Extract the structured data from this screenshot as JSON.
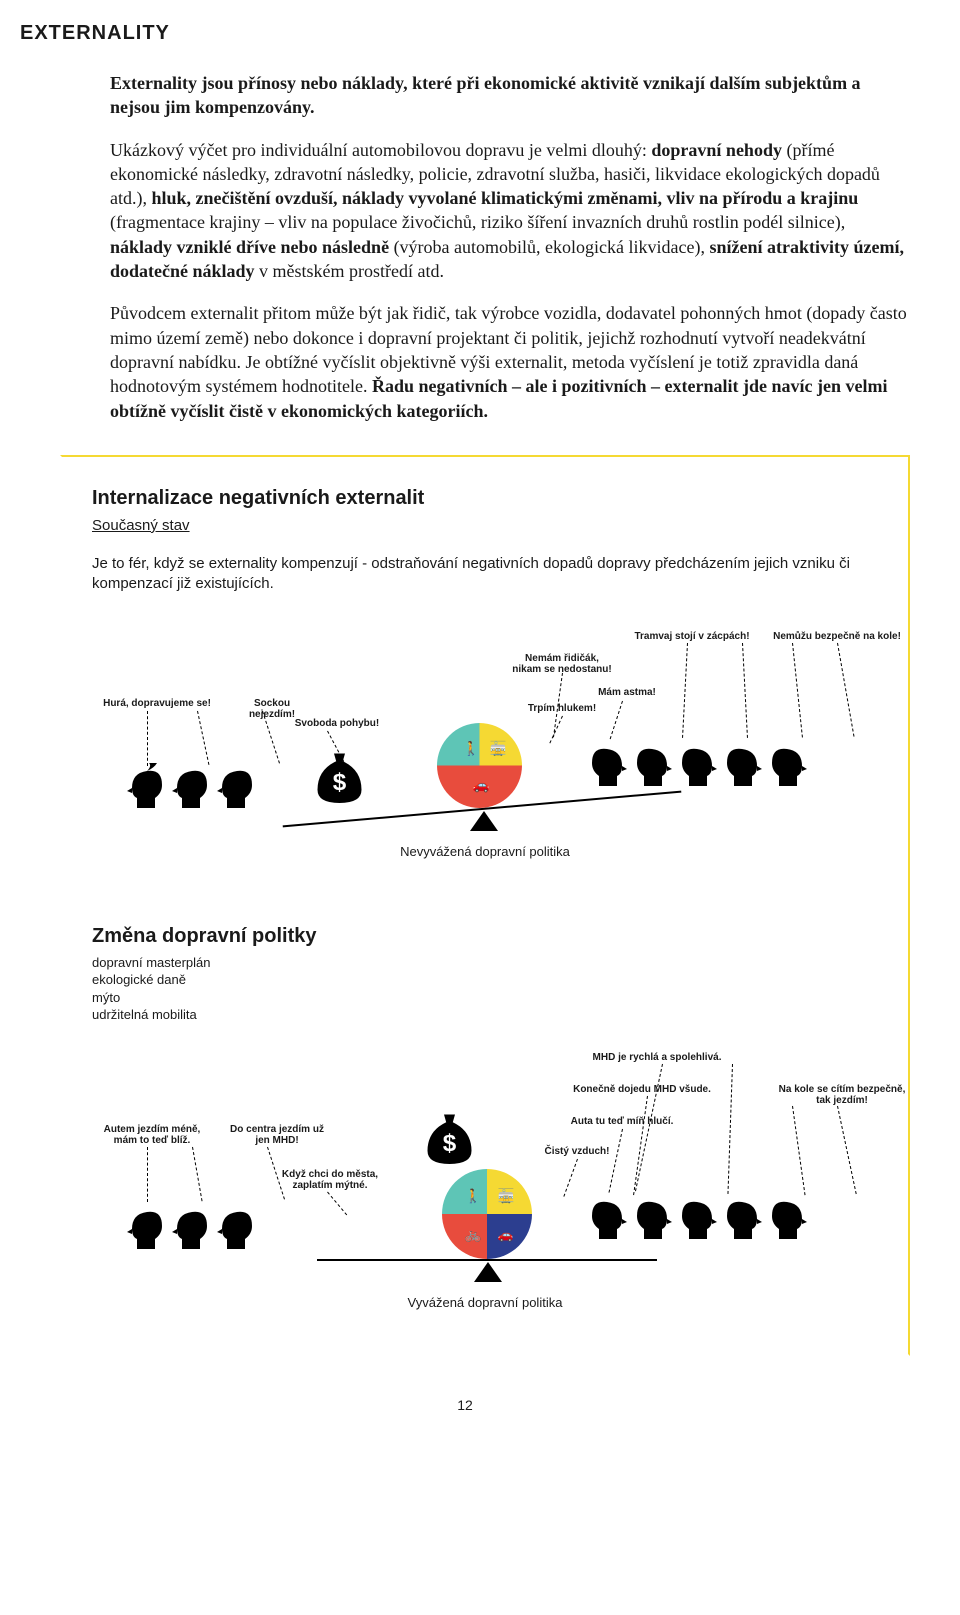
{
  "page_title": "EXTERNALITY",
  "definition_text": "Externality jsou přínosy nebo náklady, které při ekonomické aktivitě vznikají dalším subjektům a nejsou jim kompenzovány.",
  "para2_pre": "Ukázkový výčet pro individuální automobilovou dopravu je velmi dlouhý: ",
  "para2_bold1": "dopravní nehody",
  "para2_mid1": " (přímé ekonomické následky, zdravotní následky, policie, zdravotní služba, hasiči, likvidace ekologických dopadů atd.), ",
  "para2_bold2": "hluk, znečištění ovzduší, náklady vyvolané klimatickými změnami, vliv na přírodu a krajinu",
  "para2_mid2": " (fragmentace krajiny – vliv na populace živočichů, riziko šíření invazních druhů rostlin podél silnice), ",
  "para2_bold3": "náklady vzniklé dříve nebo následně",
  "para2_mid3": " (výroba automobilů, ekologická likvidace), ",
  "para2_bold4": "snížení atraktivity území, dodatečné náklady",
  "para2_end": " v městském prostředí atd.",
  "para3_pre": "Původcem externalit přitom může být jak řidič, tak výrobce vozidla, dodavatel pohonných hmot (dopady často mimo území země) nebo dokonce i dopravní projektant či politik, jejichž rozhodnutí vytvoří neadekvátní dopravní nabídku. Je obtížné vyčíslit objektivně výši externalit, metoda vyčíslení je totiž zpravidla daná hodnotovým systémem hodnotitele. ",
  "para3_bold": "Řadu negativních – ale i pozitivních – externalit jde navíc jen velmi obtížně vyčíslit čistě v ekonomických kategoriích.",
  "box": {
    "title": "Internalizace negativních externalit",
    "subtitle": "Současný stav",
    "lead": "Je to fér, když se externality kompenzují - odstraňování negativních dopadů dopravy předcházením jejich vzniku či kompenzací již existujících.",
    "scene1": {
      "left_labels": [
        "Hurá, dopravujeme se!",
        "Sockou nejezdím!",
        "Svoboda pohybu!"
      ],
      "right_labels": [
        "Nemám řidičák,\nnikam se nedostanu!",
        "Tramvaj stojí v zácpách!",
        "Nemůžu bezpečně na kole!",
        "Mám astma!",
        "Trpím hlukem!"
      ],
      "caption": "Nevyvážená dopravní politika",
      "beam_angle_deg": -5,
      "left_heads": 3,
      "right_heads": 5
    },
    "section2_title": "Změna dopravní politky",
    "section2_bullets": [
      "dopravní masterplán",
      "ekologické daně",
      "mýto",
      "udržitelná mobilita"
    ],
    "scene2": {
      "left_labels": [
        "Autem jezdím méně,\nmám to teď blíž.",
        "Do centra jezdím už\njen MHD!",
        "Když chci do města,\nzaplatím mýtné."
      ],
      "right_labels": [
        "MHD je rychlá a spolehlivá.",
        "Konečně dojedu MHD všude.",
        "Na kole se cítím bezpečně,\ntak jezdím!",
        "Auta tu teď míň hlučí.",
        "Čistý vzduch!"
      ],
      "caption": "Vyvážená dopravní politika",
      "beam_angle_deg": 0,
      "left_heads": 3,
      "right_heads": 5
    },
    "pie_colors": {
      "red": "#e84c3d",
      "yellow": "#f5d933",
      "teal": "#5ec5b6",
      "blue": "#2c3e8f"
    },
    "head_color": "#000000",
    "bag_color": "#000000"
  },
  "page_number": "12"
}
